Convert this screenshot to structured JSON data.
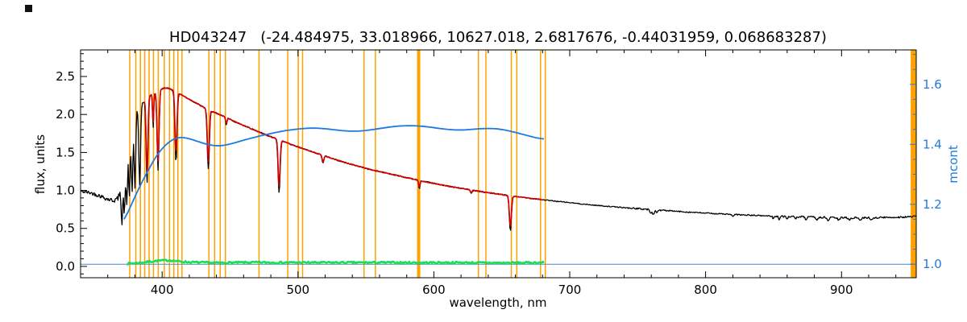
{
  "title": "HD043247   (-24.484975, 33.018966, 10627.018, 2.6817676, -0.44031959, 0.068683287)",
  "axes": {
    "x_label": "wavelength, nm",
    "y_left_label": "flux, units",
    "y_right_label": "mcont"
  },
  "chart_data": {
    "type": "line",
    "title": "HD043247 (-24.484975, 33.018966, 10627.018, 2.6817676, -0.44031959, 0.068683287)",
    "xlabel": "wavelength, nm",
    "ylabel_left": "flux, units",
    "ylabel_right": "mcont",
    "xlim": [
      340,
      955
    ],
    "ylim_left": [
      -0.15,
      2.85
    ],
    "ylim_right": [
      0.955,
      1.715
    ],
    "x_ticks": [
      400,
      500,
      600,
      700,
      800,
      900
    ],
    "x_tick_labels": [
      "400",
      "500",
      "600",
      "700",
      "800",
      "900"
    ],
    "x_minor_step": 20,
    "y_left_ticks": [
      0.0,
      0.5,
      1.0,
      1.5,
      2.0,
      2.5
    ],
    "y_left_tick_labels": [
      "0.0",
      "0.5",
      "1.0",
      "1.5",
      "2.0",
      "2.5"
    ],
    "y_left_minor_step": 0.1,
    "y_right_ticks": [
      1.0,
      1.2,
      1.4,
      1.6
    ],
    "y_right_tick_labels": [
      "1.0",
      "1.2",
      "1.4",
      "1.6"
    ],
    "y_right_minor_step": 0.05,
    "axis_color": "#000000",
    "right_axis_color": "#1f7ade",
    "background": "#ffffff",
    "grid": false,
    "legend": "none",
    "vlines": {
      "color": "#ffa200",
      "items": [
        [
          376.2,
          1.5
        ],
        [
          380.6,
          1.5
        ],
        [
          384.0,
          1.5
        ],
        [
          387.2,
          1.5
        ],
        [
          390.4,
          1.5
        ],
        [
          393.6,
          1.5
        ],
        [
          397.2,
          1.5
        ],
        [
          401.6,
          1.5
        ],
        [
          405.4,
          1.5
        ],
        [
          408.6,
          1.5
        ],
        [
          411.6,
          1.5
        ],
        [
          414.6,
          1.5
        ],
        [
          434.4,
          1.5
        ],
        [
          438.6,
          1.5
        ],
        [
          442.8,
          1.5
        ],
        [
          446.6,
          1.5
        ],
        [
          471.3,
          1.5
        ],
        [
          492.5,
          1.5
        ],
        [
          500.2,
          1.5
        ],
        [
          503.4,
          1.5
        ],
        [
          548.6,
          1.5
        ],
        [
          557.0,
          1.5
        ],
        [
          588.8,
          4
        ],
        [
          632.8,
          1.5
        ],
        [
          638.3,
          1.5
        ],
        [
          657.0,
          1.5
        ],
        [
          661.0,
          1.5
        ],
        [
          678.5,
          1.5
        ],
        [
          682.0,
          1.5
        ],
        [
          953.0,
          7
        ]
      ]
    },
    "series": {
      "baseline": {
        "name": "unity-baseline",
        "axis": "right",
        "color": "#4a86c8",
        "width": 0.9,
        "range": [
          340,
          955
        ],
        "step": 615,
        "seed": 1,
        "continuum": [
          [
            340,
            1.0
          ],
          [
            955,
            1.0
          ]
        ],
        "lines": [],
        "noise": [
          [
            340,
            0
          ],
          [
            955,
            0
          ]
        ]
      },
      "observed": {
        "name": "observed-spectrum",
        "axis": "left",
        "color": "#000000",
        "width": 1.3,
        "range": [
          340,
          955
        ],
        "step": 0.5,
        "seed": 42,
        "continuum": [
          [
            340,
            0.99
          ],
          [
            348,
            0.965
          ],
          [
            354,
            0.93
          ],
          [
            360,
            0.885
          ],
          [
            364,
            0.868
          ],
          [
            367,
            0.885
          ],
          [
            369,
            0.95
          ],
          [
            371,
            1.08
          ],
          [
            373,
            1.3
          ],
          [
            375,
            1.55
          ],
          [
            377,
            1.78
          ],
          [
            379,
            1.95
          ],
          [
            381,
            2.05
          ],
          [
            384,
            2.13
          ],
          [
            388,
            2.2
          ],
          [
            392,
            2.26
          ],
          [
            396,
            2.3
          ],
          [
            400,
            2.34
          ],
          [
            404,
            2.35
          ],
          [
            408,
            2.32
          ],
          [
            414,
            2.26
          ],
          [
            420,
            2.2
          ],
          [
            426,
            2.14
          ],
          [
            432,
            2.08
          ],
          [
            438,
            2.03
          ],
          [
            446,
            1.97
          ],
          [
            454,
            1.9
          ],
          [
            462,
            1.84
          ],
          [
            470,
            1.78
          ],
          [
            478,
            1.72
          ],
          [
            486,
            1.67
          ],
          [
            494,
            1.61
          ],
          [
            502,
            1.56
          ],
          [
            512,
            1.5
          ],
          [
            522,
            1.44
          ],
          [
            532,
            1.38
          ],
          [
            542,
            1.33
          ],
          [
            552,
            1.28
          ],
          [
            562,
            1.24
          ],
          [
            572,
            1.2
          ],
          [
            582,
            1.16
          ],
          [
            592,
            1.12
          ],
          [
            602,
            1.085
          ],
          [
            614,
            1.045
          ],
          [
            626,
            1.01
          ],
          [
            638,
            0.975
          ],
          [
            650,
            0.945
          ],
          [
            662,
            0.915
          ],
          [
            674,
            0.89
          ],
          [
            686,
            0.865
          ],
          [
            700,
            0.838
          ],
          [
            714,
            0.812
          ],
          [
            728,
            0.79
          ],
          [
            742,
            0.77
          ],
          [
            756,
            0.752
          ],
          [
            770,
            0.735
          ],
          [
            784,
            0.718
          ],
          [
            798,
            0.703
          ],
          [
            812,
            0.69
          ],
          [
            826,
            0.678
          ],
          [
            840,
            0.668
          ],
          [
            854,
            0.659
          ],
          [
            868,
            0.652
          ],
          [
            882,
            0.646
          ],
          [
            896,
            0.642
          ],
          [
            910,
            0.64
          ],
          [
            924,
            0.641
          ],
          [
            938,
            0.645
          ],
          [
            955,
            0.655
          ]
        ],
        "lines": [
          [
            370.4,
            0.45,
            0.7
          ],
          [
            372.2,
            0.45,
            0.7
          ],
          [
            374.0,
            0.45,
            0.7
          ],
          [
            375.9,
            0.45,
            0.7
          ],
          [
            377.9,
            0.48,
            0.8
          ],
          [
            380.0,
            0.48,
            0.8
          ],
          [
            383.5,
            0.5,
            0.9
          ],
          [
            388.9,
            0.5,
            1.0
          ],
          [
            393.4,
            0.2,
            0.6
          ],
          [
            397.0,
            0.45,
            1.0
          ],
          [
            410.2,
            0.4,
            1.1
          ],
          [
            434.0,
            0.38,
            1.1
          ],
          [
            447.2,
            0.05,
            0.7
          ],
          [
            486.1,
            0.42,
            1.1
          ],
          [
            518.4,
            0.07,
            0.9
          ],
          [
            589.3,
            0.1,
            0.7
          ],
          [
            627.5,
            0.05,
            0.8
          ],
          [
            656.3,
            0.5,
            1.1
          ],
          [
            759.5,
            0.07,
            0.8
          ],
          [
            761.5,
            0.09,
            0.9
          ],
          [
            764.0,
            0.05,
            0.8
          ],
          [
            820.0,
            0.04,
            1.0
          ],
          [
            849.8,
            0.05,
            0.7
          ],
          [
            854.2,
            0.07,
            0.7
          ],
          [
            860.0,
            0.04,
            0.8
          ],
          [
            866.2,
            0.06,
            0.7
          ],
          [
            874.0,
            0.05,
            1.0
          ],
          [
            882.0,
            0.05,
            1.0
          ],
          [
            890.0,
            0.06,
            1.2
          ],
          [
            898.0,
            0.05,
            1.2
          ],
          [
            906.0,
            0.04,
            1.2
          ],
          [
            914.0,
            0.05,
            1.2
          ],
          [
            922.0,
            0.04,
            1.2
          ]
        ],
        "noise": [
          [
            340,
            0.02
          ],
          [
            362,
            0.028
          ],
          [
            368,
            0.04
          ],
          [
            380,
            0.03
          ],
          [
            388,
            0.015
          ],
          [
            395,
            0.01
          ],
          [
            420,
            0.008
          ],
          [
            500,
            0.007
          ],
          [
            600,
            0.007
          ],
          [
            680,
            0.006
          ],
          [
            740,
            0.006
          ],
          [
            754,
            0.011
          ],
          [
            768,
            0.011
          ],
          [
            776,
            0.007
          ],
          [
            840,
            0.008
          ],
          [
            856,
            0.011
          ],
          [
            880,
            0.012
          ],
          [
            910,
            0.012
          ],
          [
            940,
            0.012
          ],
          [
            955,
            0.013
          ]
        ]
      },
      "model": {
        "name": "fitted-spectrum",
        "axis": "left",
        "color": "#d40000",
        "width": 1.6,
        "range": [
          387,
          681
        ],
        "step": 0.5,
        "seed": 99,
        "continuum": "observed",
        "lines": [
          [
            388.9,
            0.45,
            0.9
          ],
          [
            393.4,
            0.17,
            0.6
          ],
          [
            397.0,
            0.4,
            1.0
          ],
          [
            410.2,
            0.35,
            1.0
          ],
          [
            434.0,
            0.33,
            1.0
          ],
          [
            447.2,
            0.04,
            0.7
          ],
          [
            486.1,
            0.37,
            1.0
          ],
          [
            518.4,
            0.06,
            0.9
          ],
          [
            589.3,
            0.08,
            0.7
          ],
          [
            627.5,
            0.04,
            0.8
          ],
          [
            656.3,
            0.44,
            1.0
          ]
        ],
        "noise": [
          [
            387,
            0.006
          ],
          [
            681,
            0.006
          ]
        ]
      },
      "residual": {
        "name": "residual-curve",
        "axis": "left",
        "color": "#17df57",
        "width": 2.6,
        "range": [
          374,
          681
        ],
        "step": 0.8,
        "seed": 7,
        "continuum": [
          [
            374,
            0.035
          ],
          [
            382,
            0.045
          ],
          [
            390,
            0.06
          ],
          [
            398,
            0.075
          ],
          [
            406,
            0.08
          ],
          [
            412,
            0.065
          ],
          [
            420,
            0.055
          ],
          [
            430,
            0.05
          ],
          [
            440,
            0.045
          ],
          [
            455,
            0.05
          ],
          [
            470,
            0.052
          ],
          [
            490,
            0.05
          ],
          [
            510,
            0.05
          ],
          [
            530,
            0.05
          ],
          [
            550,
            0.05
          ],
          [
            570,
            0.05
          ],
          [
            590,
            0.048
          ],
          [
            610,
            0.05
          ],
          [
            630,
            0.048
          ],
          [
            650,
            0.045
          ],
          [
            665,
            0.047
          ],
          [
            681,
            0.05
          ]
        ],
        "lines": [],
        "noise": [
          [
            374,
            0.012
          ],
          [
            681,
            0.012
          ]
        ]
      },
      "mcont": {
        "name": "mcont-curve",
        "axis": "right",
        "color": "#1f7ade",
        "width": 1.8,
        "range": [
          372,
          681
        ],
        "step": 1.5,
        "seed": 3,
        "continuum": [
          [
            372,
            1.15
          ],
          [
            375,
            1.175
          ],
          [
            378,
            1.205
          ],
          [
            381,
            1.235
          ],
          [
            384,
            1.263
          ],
          [
            387,
            1.29
          ],
          [
            390,
            1.315
          ],
          [
            393,
            1.34
          ],
          [
            396,
            1.362
          ],
          [
            399,
            1.38
          ],
          [
            402,
            1.395
          ],
          [
            405,
            1.407
          ],
          [
            408,
            1.416
          ],
          [
            411,
            1.421
          ],
          [
            414,
            1.423
          ],
          [
            418,
            1.421
          ],
          [
            422,
            1.416
          ],
          [
            426,
            1.41
          ],
          [
            430,
            1.404
          ],
          [
            434,
            1.399
          ],
          [
            438,
            1.396
          ],
          [
            442,
            1.395
          ],
          [
            446,
            1.397
          ],
          [
            450,
            1.401
          ],
          [
            455,
            1.407
          ],
          [
            460,
            1.414
          ],
          [
            466,
            1.421
          ],
          [
            472,
            1.428
          ],
          [
            478,
            1.434
          ],
          [
            484,
            1.44
          ],
          [
            490,
            1.445
          ],
          [
            496,
            1.449
          ],
          [
            502,
            1.452
          ],
          [
            508,
            1.454
          ],
          [
            514,
            1.454
          ],
          [
            520,
            1.452
          ],
          [
            526,
            1.449
          ],
          [
            532,
            1.446
          ],
          [
            538,
            1.444
          ],
          [
            544,
            1.444
          ],
          [
            550,
            1.446
          ],
          [
            556,
            1.45
          ],
          [
            562,
            1.454
          ],
          [
            568,
            1.458
          ],
          [
            574,
            1.461
          ],
          [
            580,
            1.462
          ],
          [
            586,
            1.462
          ],
          [
            592,
            1.46
          ],
          [
            598,
            1.457
          ],
          [
            604,
            1.453
          ],
          [
            610,
            1.45
          ],
          [
            616,
            1.448
          ],
          [
            622,
            1.448
          ],
          [
            628,
            1.45
          ],
          [
            634,
            1.452
          ],
          [
            640,
            1.453
          ],
          [
            646,
            1.452
          ],
          [
            652,
            1.448
          ],
          [
            658,
            1.442
          ],
          [
            664,
            1.435
          ],
          [
            670,
            1.428
          ],
          [
            675,
            1.422
          ],
          [
            681,
            1.418
          ]
        ],
        "lines": [],
        "noise": [
          [
            372,
            0
          ],
          [
            681,
            0
          ]
        ]
      }
    }
  }
}
